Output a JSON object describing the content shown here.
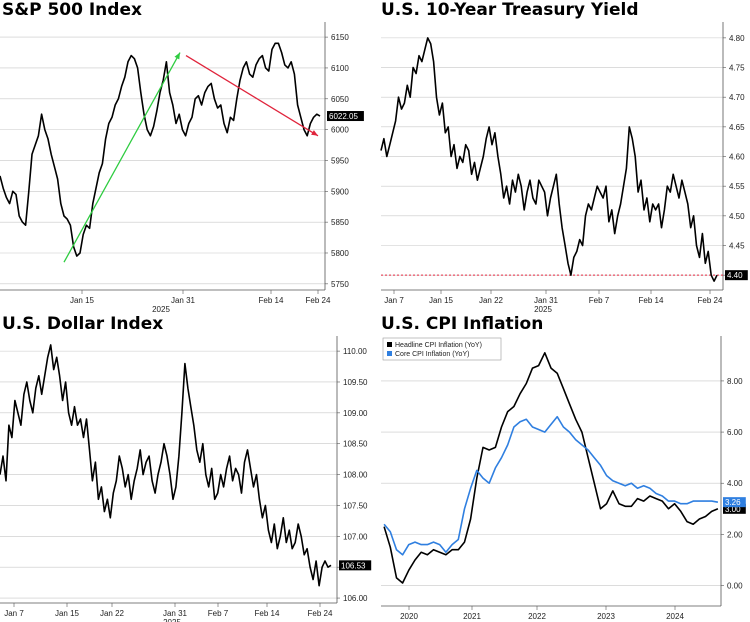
{
  "chart_data": [
    {
      "id": "spx",
      "type": "line",
      "title": "S&P 500 Index",
      "x_ticks": [
        "Jan 15",
        "Jan 31",
        "Feb 14",
        "Feb 24"
      ],
      "x_sublabel": "2025",
      "y_ticks": [
        5750,
        5800,
        5850,
        5900,
        5950,
        6000,
        6050,
        6100,
        6150
      ],
      "ylim": [
        5740,
        6168
      ],
      "last_value_label": "6022.05",
      "series": [
        {
          "color": "#000000",
          "x": [
            0,
            2,
            4,
            6,
            8,
            10,
            12,
            14,
            16,
            18,
            20,
            22,
            24,
            26,
            28,
            30,
            32,
            34,
            36,
            38,
            40,
            42,
            44,
            46,
            48,
            50,
            52,
            54,
            56,
            58,
            60,
            62,
            64,
            66,
            68,
            70,
            72,
            74,
            76,
            78,
            80,
            82,
            84,
            86,
            88,
            90,
            92,
            94,
            96,
            98,
            100,
            102,
            104,
            106,
            108,
            110,
            112,
            114,
            116,
            118,
            120,
            122,
            124,
            126,
            128,
            130,
            132,
            134,
            136,
            138,
            140,
            142,
            144,
            146,
            148,
            150,
            152,
            154,
            156,
            158,
            160,
            162,
            164,
            166,
            168,
            170,
            172,
            174,
            176,
            178,
            180,
            182,
            184,
            186,
            188,
            190,
            192,
            194,
            196,
            198,
            200
          ],
          "y": [
            5925,
            5905,
            5890,
            5880,
            5900,
            5895,
            5860,
            5850,
            5845,
            5900,
            5960,
            5975,
            5990,
            6025,
            6000,
            5985,
            5960,
            5940,
            5920,
            5880,
            5860,
            5855,
            5845,
            5810,
            5795,
            5800,
            5830,
            5845,
            5840,
            5880,
            5905,
            5930,
            5945,
            5985,
            6010,
            6020,
            6040,
            6050,
            6070,
            6085,
            6110,
            6120,
            6115,
            6100,
            6060,
            6025,
            6000,
            5990,
            6005,
            6030,
            6060,
            6080,
            6110,
            6060,
            6040,
            6010,
            6025,
            6000,
            5990,
            6010,
            6020,
            6050,
            6055,
            6040,
            6060,
            6070,
            6075,
            6050,
            6035,
            6040,
            6010,
            5995,
            6020,
            6015,
            6050,
            6080,
            6100,
            6110,
            6090,
            6085,
            6105,
            6115,
            6120,
            6100,
            6095,
            6130,
            6140,
            6140,
            6125,
            6105,
            6100,
            6110,
            6090,
            6040,
            6020,
            6000,
            5990,
            6010,
            6020,
            6025,
            6022
          ]
        }
      ],
      "annotations": [
        {
          "type": "arrow",
          "color": "#2ecc40",
          "from": [
            64,
            5785
          ],
          "to": [
            180,
            6125
          ]
        },
        {
          "type": "arrow",
          "color": "#e0243c",
          "from": [
            186,
            6120
          ],
          "to": [
            318,
            5990
          ]
        }
      ]
    },
    {
      "id": "ust10y",
      "type": "line",
      "title": "U.S. 10-Year Treasury Yield",
      "x_ticks": [
        "Jan 7",
        "Jan 15",
        "Jan 22",
        "Jan 31",
        "Feb 7",
        "Feb 14",
        "Feb 24"
      ],
      "x_sublabel": "2025",
      "y_ticks": [
        "4.40",
        "4.45",
        "4.50",
        "4.55",
        "4.60",
        "4.65",
        "4.70",
        "4.75",
        "4.80"
      ],
      "ylim": [
        4.375,
        4.82
      ],
      "last_value_label": "4.40",
      "reference_line": {
        "value": 4.4,
        "color": "#e0243c",
        "style": "dotted"
      },
      "series": [
        {
          "color": "#000000",
          "y": [
            4.61,
            4.63,
            4.6,
            4.62,
            4.64,
            4.66,
            4.7,
            4.68,
            4.69,
            4.72,
            4.7,
            4.75,
            4.74,
            4.77,
            4.76,
            4.78,
            4.8,
            4.79,
            4.76,
            4.7,
            4.67,
            4.69,
            4.64,
            4.65,
            4.6,
            4.62,
            4.58,
            4.6,
            4.59,
            4.62,
            4.61,
            4.57,
            4.59,
            4.56,
            4.58,
            4.6,
            4.63,
            4.65,
            4.62,
            4.64,
            4.6,
            4.57,
            4.53,
            4.55,
            4.52,
            4.56,
            4.54,
            4.57,
            4.55,
            4.51,
            4.54,
            4.56,
            4.53,
            4.52,
            4.56,
            4.55,
            4.54,
            4.5,
            4.53,
            4.55,
            4.57,
            4.52,
            4.48,
            4.45,
            4.42,
            4.4,
            4.43,
            4.44,
            4.46,
            4.45,
            4.5,
            4.52,
            4.51,
            4.53,
            4.55,
            4.54,
            4.53,
            4.55,
            4.49,
            4.51,
            4.47,
            4.5,
            4.52,
            4.55,
            4.58,
            4.65,
            4.63,
            4.6,
            4.54,
            4.56,
            4.51,
            4.53,
            4.49,
            4.52,
            4.51,
            4.52,
            4.48,
            4.51,
            4.55,
            4.54,
            4.57,
            4.55,
            4.53,
            4.56,
            4.54,
            4.52,
            4.48,
            4.5,
            4.45,
            4.43,
            4.47,
            4.42,
            4.44,
            4.4,
            4.39,
            4.4
          ]
        }
      ]
    },
    {
      "id": "dxy",
      "type": "line",
      "title": "U.S. Dollar Index",
      "x_ticks": [
        "Jan 7",
        "Jan 15",
        "Jan 22",
        "Jan 31",
        "Feb 7",
        "Feb 14",
        "Feb 24"
      ],
      "x_sublabel": "2025",
      "y_ticks": [
        "106.00",
        "106.50",
        "107.00",
        "107.50",
        "108.00",
        "108.50",
        "109.00",
        "109.50",
        "110.00"
      ],
      "ylim": [
        105.92,
        110.18
      ],
      "last_value_label": "106.53",
      "series": [
        {
          "color": "#000000",
          "y": [
            108.0,
            108.3,
            107.9,
            108.8,
            108.6,
            109.2,
            109.0,
            108.8,
            109.3,
            109.5,
            109.2,
            109.0,
            109.4,
            109.6,
            109.3,
            109.6,
            109.9,
            110.1,
            109.7,
            109.9,
            109.6,
            109.2,
            109.5,
            109.0,
            108.8,
            109.1,
            108.8,
            108.9,
            108.6,
            108.9,
            108.4,
            107.9,
            108.2,
            107.6,
            107.8,
            107.4,
            107.6,
            107.3,
            107.7,
            107.9,
            108.3,
            108.1,
            107.8,
            108.0,
            107.6,
            107.9,
            108.1,
            108.4,
            108.0,
            108.2,
            108.3,
            107.9,
            107.7,
            108.0,
            108.2,
            108.5,
            108.3,
            108.0,
            107.6,
            107.8,
            108.3,
            109.0,
            109.8,
            109.4,
            109.1,
            108.8,
            108.4,
            108.2,
            108.5,
            108.0,
            107.8,
            108.1,
            107.6,
            107.7,
            108.0,
            107.8,
            108.1,
            108.3,
            107.9,
            108.1,
            108.0,
            107.7,
            108.2,
            108.4,
            108.1,
            107.8,
            108.0,
            107.6,
            107.3,
            107.5,
            107.1,
            106.9,
            107.2,
            106.8,
            107.0,
            107.3,
            106.9,
            107.1,
            106.8,
            106.9,
            107.2,
            107.0,
            106.7,
            106.8,
            106.5,
            106.3,
            106.6,
            106.2,
            106.5,
            106.6,
            106.5,
            106.53
          ]
        }
      ]
    },
    {
      "id": "cpi",
      "type": "line",
      "title": "U.S. CPI Inflation",
      "x_ticks": [
        "2020",
        "2021",
        "2022",
        "2023",
        "2024"
      ],
      "y_ticks": [
        "0.00",
        "2.00",
        "4.00",
        "6.00",
        "8.00"
      ],
      "ylim": [
        -0.8,
        9.6
      ],
      "legend_position": "top-left",
      "series": [
        {
          "name": "Headline CPI Inflation (YoY)",
          "color": "#000000",
          "last_value_label": "3.00",
          "x": [
            2019.6,
            2019.7,
            2019.8,
            2019.9,
            2020.0,
            2020.1,
            2020.2,
            2020.3,
            2020.4,
            2020.5,
            2020.6,
            2020.7,
            2020.8,
            2020.9,
            2021.0,
            2021.1,
            2021.2,
            2021.3,
            2021.4,
            2021.5,
            2021.6,
            2021.7,
            2021.8,
            2021.9,
            2022.0,
            2022.1,
            2022.2,
            2022.3,
            2022.4,
            2022.5,
            2022.6,
            2022.7,
            2022.8,
            2022.9,
            2023.0,
            2023.1,
            2023.2,
            2023.3,
            2023.4,
            2023.5,
            2023.6,
            2023.7,
            2023.8,
            2023.9,
            2024.0,
            2024.1,
            2024.2,
            2024.3,
            2024.4,
            2024.5,
            2024.6,
            2024.7,
            2024.8,
            2024.9,
            2025.0
          ],
          "y": [
            2.3,
            1.5,
            0.3,
            0.1,
            0.6,
            1.0,
            1.3,
            1.2,
            1.4,
            1.3,
            1.2,
            1.4,
            1.4,
            1.7,
            2.6,
            4.2,
            5.4,
            5.3,
            5.4,
            6.2,
            6.8,
            7.0,
            7.5,
            7.9,
            8.5,
            8.6,
            9.1,
            8.5,
            8.3,
            7.7,
            7.1,
            6.5,
            6.0,
            5.0,
            4.0,
            3.0,
            3.2,
            3.7,
            3.2,
            3.1,
            3.1,
            3.4,
            3.3,
            3.5,
            3.4,
            3.3,
            3.0,
            3.2,
            2.9,
            2.5,
            2.4,
            2.6,
            2.7,
            2.9,
            3.0
          ]
        },
        {
          "name": "Core CPI Inflation (YoY)",
          "color": "#2f7fe0",
          "last_value_label": "3.26",
          "x": [
            2019.6,
            2019.7,
            2019.8,
            2019.9,
            2020.0,
            2020.1,
            2020.2,
            2020.3,
            2020.4,
            2020.5,
            2020.6,
            2020.7,
            2020.8,
            2020.9,
            2021.0,
            2021.1,
            2021.2,
            2021.3,
            2021.4,
            2021.5,
            2021.6,
            2021.7,
            2021.8,
            2021.9,
            2022.0,
            2022.1,
            2022.2,
            2022.3,
            2022.4,
            2022.5,
            2022.6,
            2022.7,
            2022.8,
            2022.9,
            2023.0,
            2023.1,
            2023.2,
            2023.3,
            2023.4,
            2023.5,
            2023.6,
            2023.7,
            2023.8,
            2023.9,
            2024.0,
            2024.1,
            2024.2,
            2024.3,
            2024.4,
            2024.5,
            2024.6,
            2024.7,
            2024.8,
            2024.9,
            2025.0
          ],
          "y": [
            2.4,
            2.1,
            1.4,
            1.2,
            1.6,
            1.7,
            1.6,
            1.6,
            1.7,
            1.6,
            1.3,
            1.6,
            1.8,
            3.0,
            3.8,
            4.5,
            4.2,
            4.0,
            4.6,
            5.0,
            5.5,
            6.2,
            6.4,
            6.5,
            6.2,
            6.1,
            6.0,
            6.3,
            6.6,
            6.2,
            6.0,
            5.7,
            5.5,
            5.3,
            5.0,
            4.7,
            4.3,
            4.1,
            4.0,
            3.9,
            4.0,
            3.8,
            3.9,
            3.8,
            3.6,
            3.5,
            3.3,
            3.3,
            3.2,
            3.2,
            3.3,
            3.3,
            3.3,
            3.3,
            3.26
          ]
        }
      ]
    }
  ]
}
